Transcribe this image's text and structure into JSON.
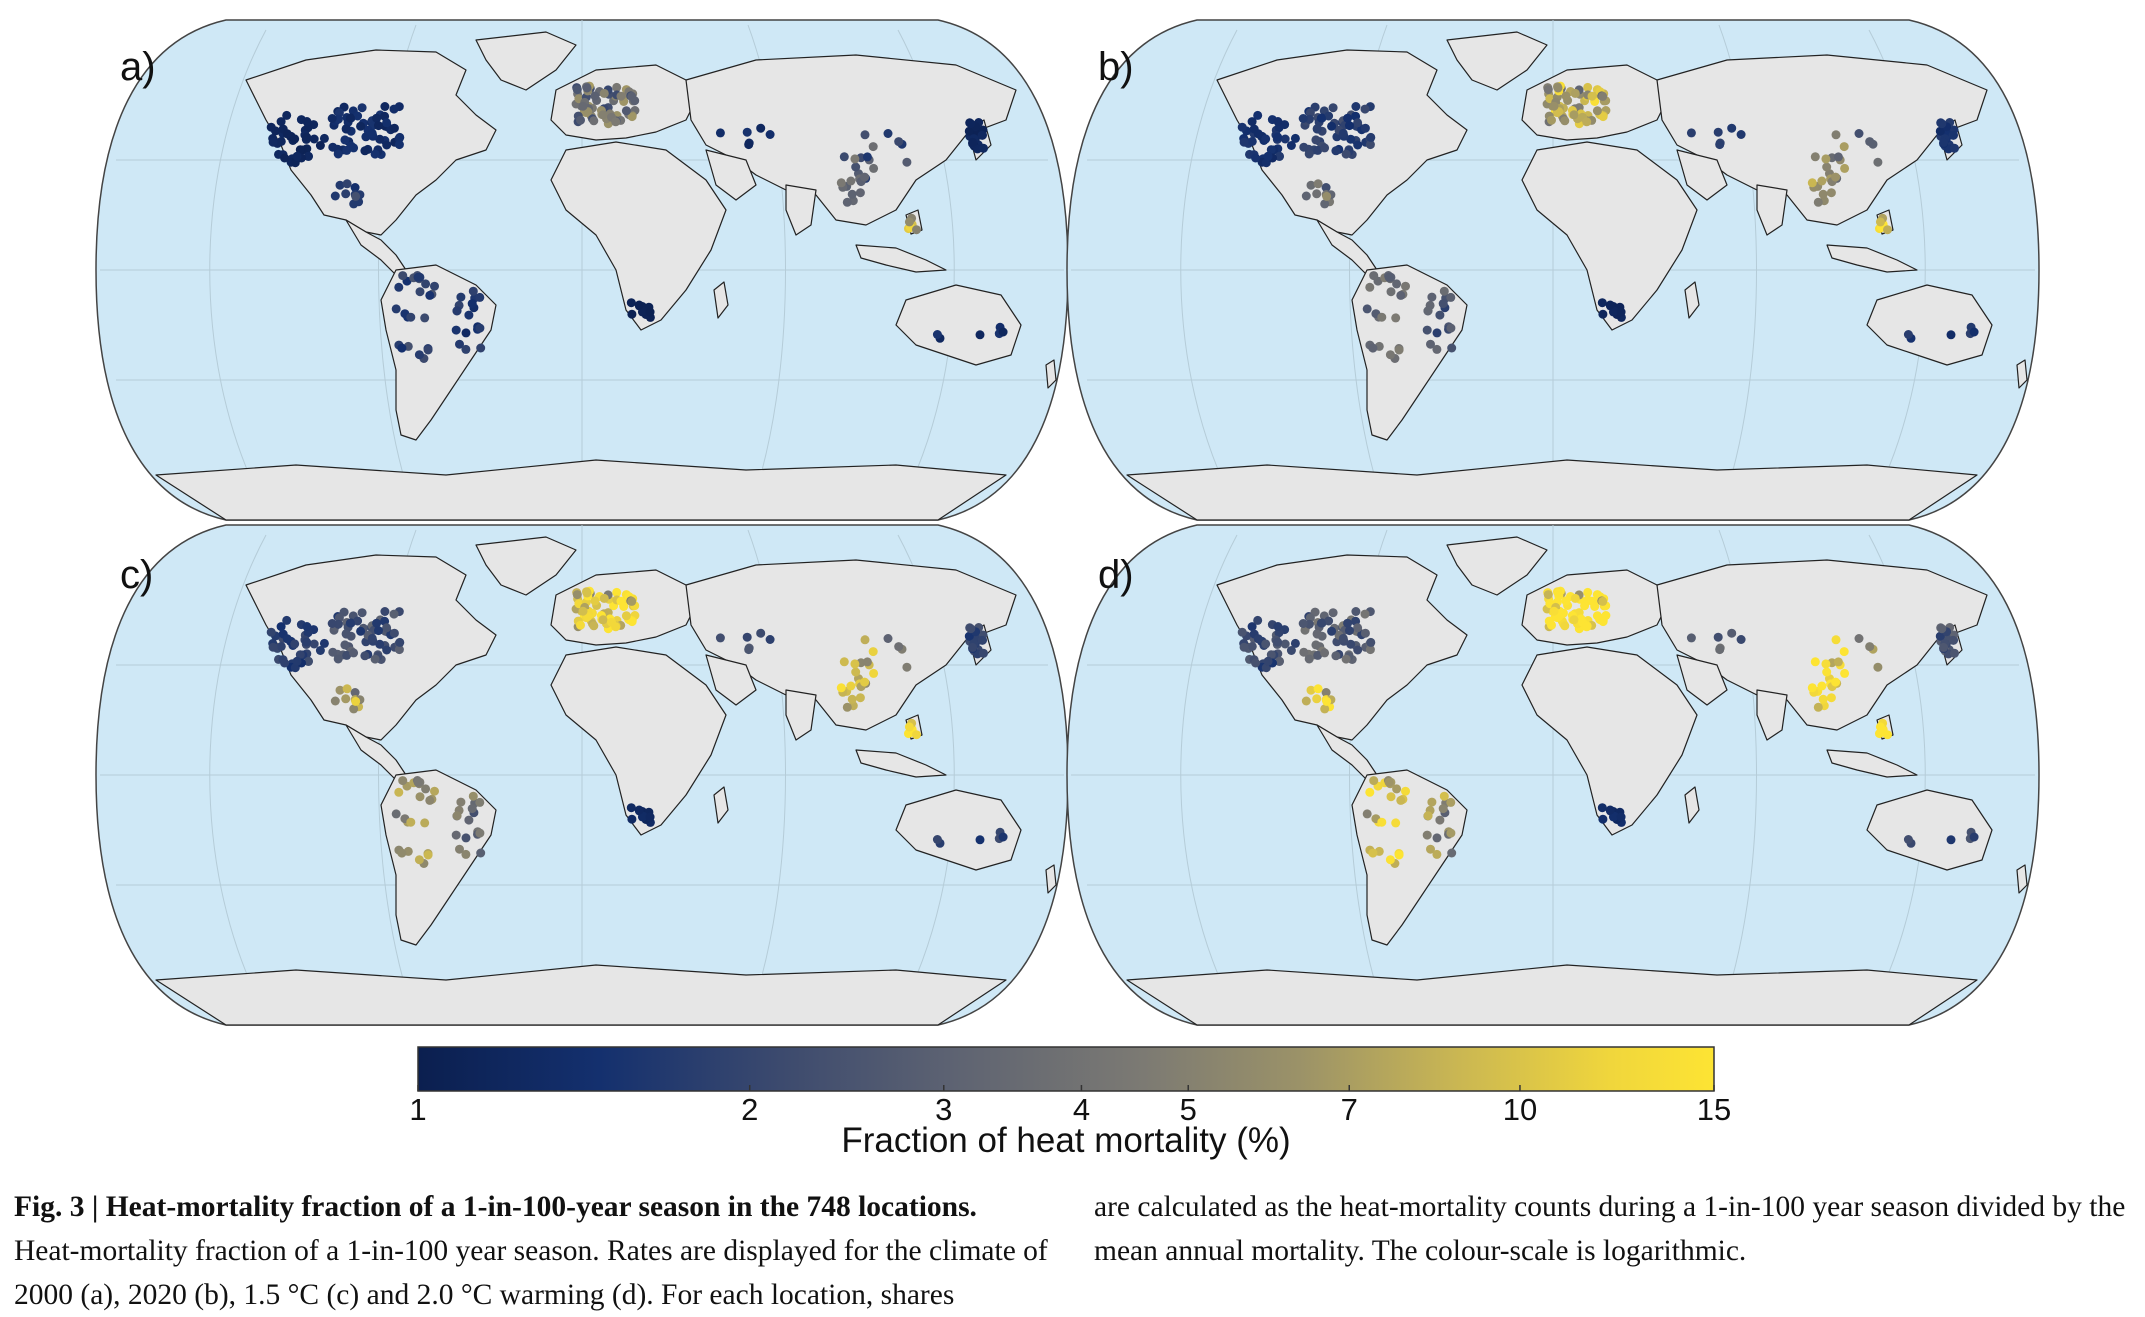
{
  "panels": [
    {
      "label": "a)",
      "scenario_color_weight": 0.0
    },
    {
      "label": "b)",
      "scenario_color_weight": 0.3
    },
    {
      "label": "c)",
      "scenario_color_weight": 0.55
    },
    {
      "label": "d)",
      "scenario_color_weight": 0.8
    }
  ],
  "colorbar": {
    "title": "Fraction of heat mortality (%)",
    "ticks": [
      "1",
      "2",
      "3",
      "4",
      "5",
      "7",
      "10",
      "15"
    ],
    "tick_values": [
      1,
      2,
      3,
      4,
      5,
      7,
      10,
      15
    ],
    "scale": "logarithmic",
    "range": [
      1,
      15
    ],
    "colors": [
      "#0b1f4f",
      "#14306e",
      "#3c4a6e",
      "#5f6472",
      "#7c7a73",
      "#9b9268",
      "#c9b653",
      "#f0d63c",
      "#fde433"
    ]
  },
  "map_style": {
    "ocean": "#cfe8f6",
    "land": "#e6e6e6",
    "border": "#222222",
    "graticule": "#b5ccd8"
  },
  "caption": {
    "fig_label": "Fig. 3 | Heat-mortality fraction of a 1-in-100-year season in the 748 locations.",
    "body_left": "Heat-mortality fraction of a 1-in-100 year season. Rates are displayed for the climate of 2000 (a), 2020 (b), 1.5 °C (c) and 2.0 °C warming (d). For each location, shares",
    "body_right": "are calculated as the heat-mortality counts during a 1-in-100 year season divided by the mean annual mortality. The colour-scale is logarithmic."
  }
}
